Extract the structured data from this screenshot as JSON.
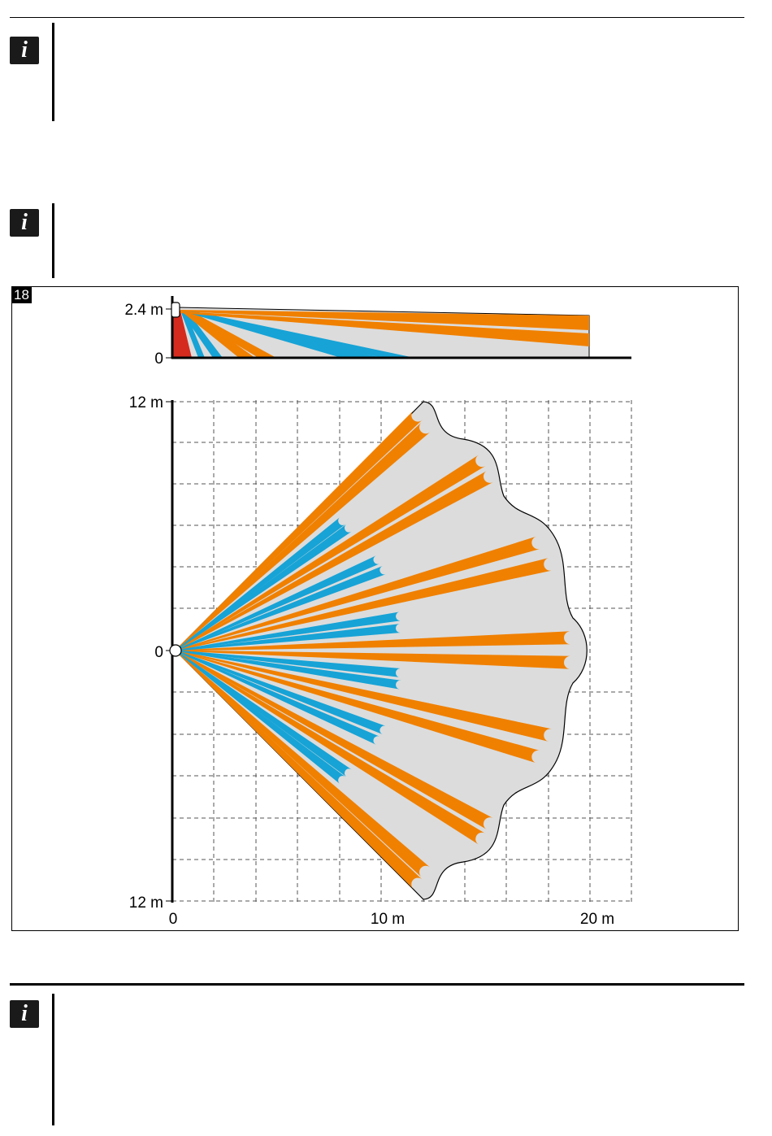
{
  "figure": {
    "number": "18",
    "side_view": {
      "y_labels": [
        "2.4 m",
        "0"
      ]
    },
    "top_view": {
      "y_labels": [
        "12 m",
        "0",
        "12 m"
      ],
      "x_labels": [
        "0",
        "10 m",
        "20 m"
      ]
    }
  },
  "notes": [
    {
      "icon": "i"
    },
    {
      "icon": "i"
    },
    {
      "icon": "i"
    }
  ],
  "colors": {
    "long_range_beam": "#f08000",
    "short_range_beam": "#17a3d6",
    "coverage_area": "#dcdcdc",
    "creep_zone": "#d52b1e"
  }
}
